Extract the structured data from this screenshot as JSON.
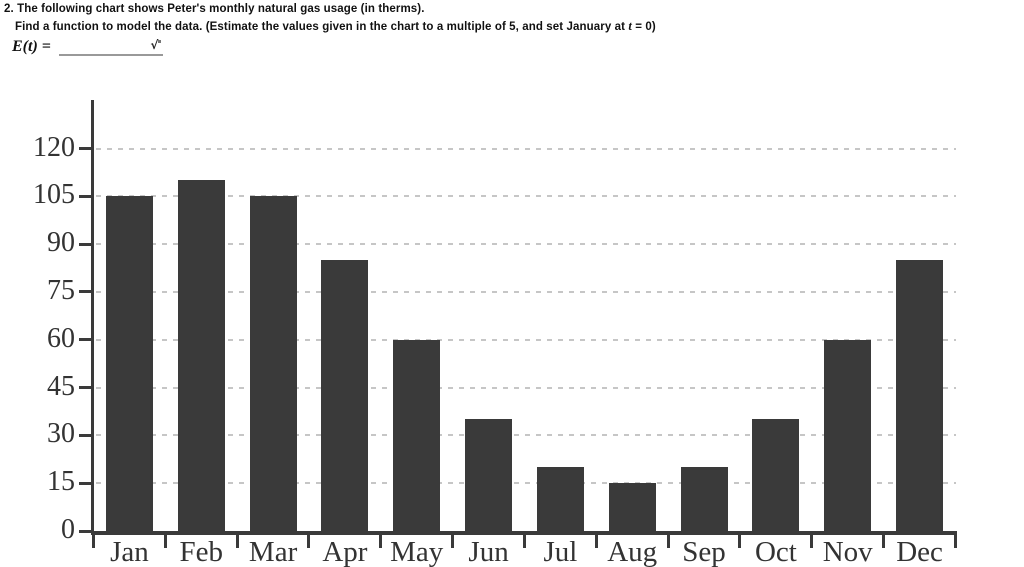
{
  "question": {
    "number": "2.",
    "line1": "The following chart shows Peter's monthly natural gas usage (in therms).",
    "line2_pre": "Find a function to model the data. (Estimate the values given in the chart to a multiple of 5, and set January at ",
    "line2_var": "t",
    "line2_post": " = 0)"
  },
  "answer": {
    "label": "E(t) =",
    "value": "",
    "sqrt_symbol": "√"
  },
  "chart_data": {
    "type": "bar",
    "categories": [
      "Jan",
      "Feb",
      "Mar",
      "Apr",
      "May",
      "Jun",
      "Jul",
      "Aug",
      "Sep",
      "Oct",
      "Nov",
      "Dec"
    ],
    "values": [
      105,
      110,
      105,
      85,
      60,
      35,
      20,
      15,
      20,
      35,
      60,
      85
    ],
    "title": "",
    "xlabel": "",
    "ylabel": "",
    "ylim": [
      0,
      135
    ],
    "yticks": [
      0,
      15,
      30,
      45,
      60,
      75,
      90,
      105,
      120
    ],
    "grid": "horizontal-dashed",
    "legend": "none",
    "bar_color": "#3a3a3a",
    "grid_color": "#c6c6c6",
    "axis_color": "#3a3a3a"
  }
}
